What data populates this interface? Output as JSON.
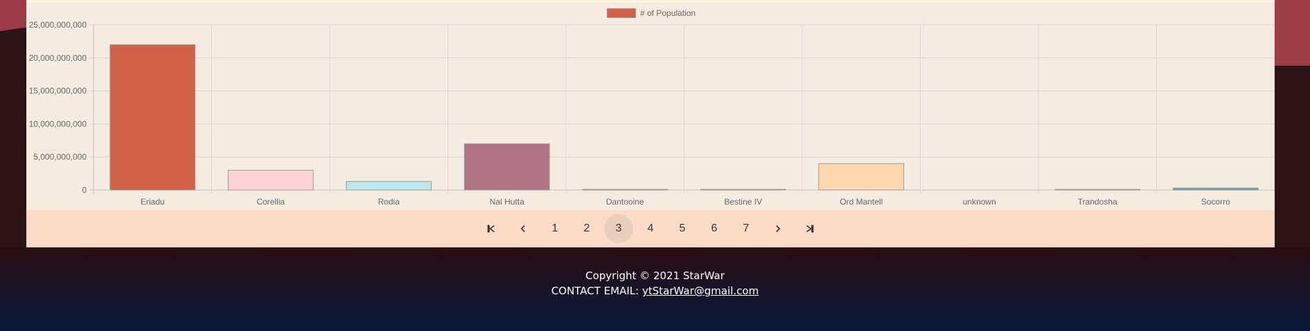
{
  "chart_data": {
    "type": "bar",
    "categories": [
      "Eriadu",
      "Corellia",
      "Rodia",
      "Nal Hutta",
      "Dantooine",
      "Bestine IV",
      "Ord Mantell",
      "unknown",
      "Trandosha",
      "Socorro"
    ],
    "series": [
      {
        "name": "# of Population",
        "values": [
          22000000000,
          3000000000,
          1300000000,
          7000000000,
          1000,
          62000000,
          4000000000,
          0,
          42000000,
          300000000
        ],
        "colors": [
          "#d2614a",
          "#fdd3d6",
          "#bde7ea",
          "#b07284",
          "#9fbab8",
          "#c9b0a6",
          "#fcd7ab",
          "#e0d0c0",
          "#b8a8a0",
          "#6fa3a0"
        ]
      }
    ],
    "y_ticks": [
      "0",
      "5,000,000,000",
      "10,000,000,000",
      "15,000,000,000",
      "20,000,000,000",
      "25,000,000,000"
    ],
    "ylim": [
      0,
      25000000000
    ],
    "grid": true,
    "legend": "top-center"
  },
  "legend": {
    "label": "# of Population",
    "color": "#d2614a"
  },
  "pagination": {
    "pages": [
      "1",
      "2",
      "3",
      "4",
      "5",
      "6",
      "7"
    ],
    "current": "3"
  },
  "footer": {
    "copyright": "Copyright © 2021 StarWar",
    "contact_label": "CONTACT EMAIL: ",
    "email": "ytStarWar@gmail.com"
  }
}
